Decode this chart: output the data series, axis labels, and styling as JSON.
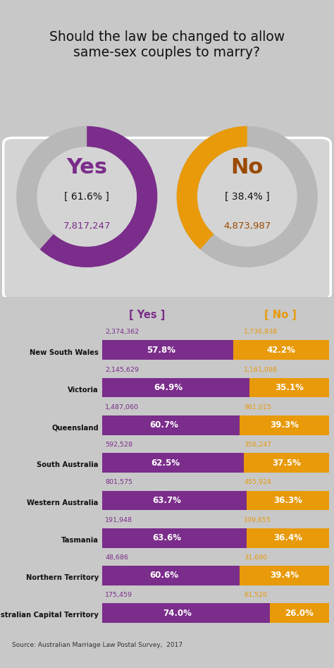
{
  "title": "Should the law be changed to allow\nsame-sex couples to marry?",
  "bg_color": "#c8c8c8",
  "donut_panel_bg": "#d0d0d0",
  "donut_panel_edge": "#ffffff",
  "gray_ring": "#b8b8b8",
  "purple": "#7B2D8B",
  "orange": "#E89A0A",
  "brown": "#9B4A00",
  "yes_pct": 61.6,
  "no_pct": 38.4,
  "yes_count": "7,817,247",
  "no_count": "4,873,987",
  "states": [
    "New South Wales",
    "Victoria",
    "Queensland",
    "South Australia",
    "Western Australia",
    "Tasmania",
    "Northern Territory",
    "Australian Capital Territory"
  ],
  "yes_votes": [
    "2,374,362",
    "2,145,629",
    "1,487,060",
    "592,528",
    "801,575",
    "191,948",
    "48,686",
    "175,459"
  ],
  "no_votes": [
    "1,736,838",
    "1,161,098",
    "961,015",
    "356,247",
    "455,924",
    "109,655",
    "31,690",
    "61,520"
  ],
  "yes_pcts": [
    57.8,
    64.9,
    60.7,
    62.5,
    63.7,
    63.6,
    60.6,
    74.0
  ],
  "no_pcts": [
    42.2,
    35.1,
    39.3,
    37.5,
    36.3,
    36.4,
    39.4,
    26.0
  ],
  "row_colors": [
    "#dcdcdc",
    "#d0d0d0",
    "#dcdcdc",
    "#d0d0d0",
    "#dcdcdc",
    "#d0d0d0",
    "#dcdcdc",
    "#d0d0d0"
  ],
  "source": "Source: Australian Marriage Law Postal Survey,  2017"
}
